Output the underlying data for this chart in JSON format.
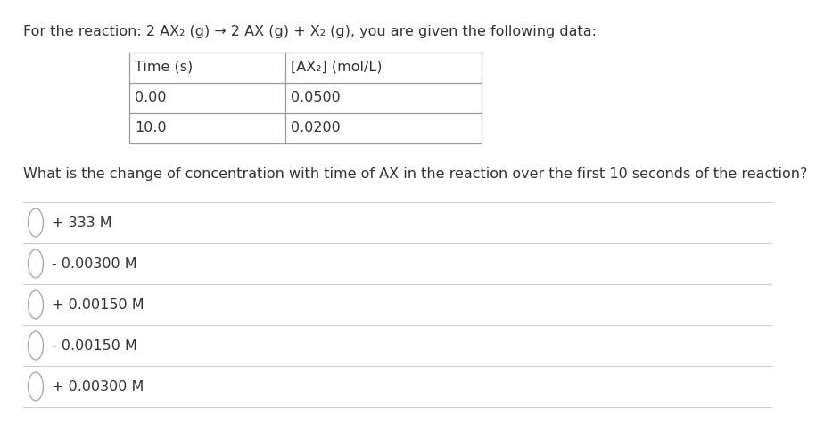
{
  "background_color": "#ffffff",
  "title_line": "For the reaction: 2 AX₂ (g) → 2 AX (g) + X₂ (g), you are given the following data:",
  "table_headers": [
    "Time (s)",
    "[AX₂] (mol/L)"
  ],
  "table_rows": [
    [
      "0.00",
      "0.0500"
    ],
    [
      "10.0",
      "0.0200"
    ]
  ],
  "question": "What is the change of concentration with time of AX in the reaction over the first 10 seconds of the reaction?",
  "options": [
    "+ 333 M",
    "- 0.00300 M",
    "+ 0.00150 M",
    "- 0.00150 M",
    "+ 0.00300 M"
  ],
  "text_color": "#333333",
  "table_border_color": "#999999",
  "line_color": "#cccccc",
  "font_size": 11.5
}
